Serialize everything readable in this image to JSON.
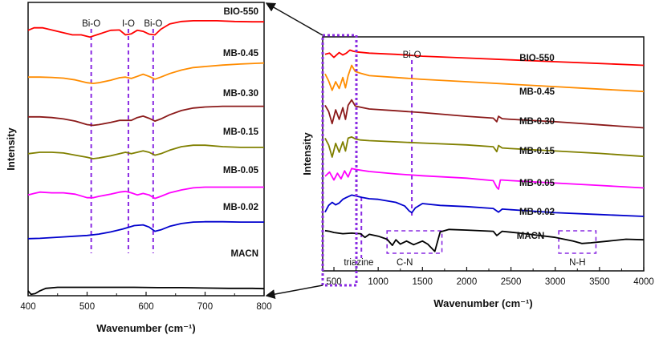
{
  "chart_data": [
    {
      "type": "line",
      "panel": "left (zoomed 400-800 cm-1)",
      "title": "",
      "xlabel": "Wavenumber (cm⁻¹)",
      "ylabel": "Intensity",
      "xlim": [
        400,
        800
      ],
      "xticks": [
        "400",
        "500",
        "600",
        "700",
        "800"
      ],
      "grid": false,
      "legend": "inline labels at right of each curve",
      "annotations": [
        {
          "text": "Bi-O",
          "x": 507
        },
        {
          "text": "I-O",
          "x": 570
        },
        {
          "text": "Bi-O",
          "x": 612
        }
      ],
      "series": [
        {
          "name": "BIO-550",
          "color": "#ff0000",
          "offset": 6,
          "x": [
            400,
            410,
            425,
            440,
            460,
            475,
            490,
            505,
            520,
            540,
            555,
            565,
            575,
            585,
            595,
            605,
            615,
            625,
            640,
            660,
            680,
            700,
            720,
            750,
            780,
            800
          ],
          "y": [
            0.55,
            0.62,
            0.62,
            0.56,
            0.48,
            0.42,
            0.42,
            0.36,
            0.44,
            0.55,
            0.56,
            0.42,
            0.45,
            0.55,
            0.52,
            0.44,
            0.42,
            0.58,
            0.73,
            0.8,
            0.82,
            0.82,
            0.82,
            0.8,
            0.79,
            0.79
          ]
        },
        {
          "name": "MB-0.45",
          "color": "#ff8c00",
          "offset": 5,
          "x": [
            400,
            420,
            440,
            460,
            480,
            500,
            510,
            520,
            540,
            555,
            565,
            575,
            585,
            595,
            605,
            615,
            625,
            640,
            660,
            680,
            700,
            730,
            760,
            800
          ],
          "y": [
            0.36,
            0.36,
            0.35,
            0.33,
            0.28,
            0.2,
            0.18,
            0.2,
            0.27,
            0.34,
            0.36,
            0.32,
            0.38,
            0.44,
            0.38,
            0.3,
            0.36,
            0.46,
            0.56,
            0.63,
            0.66,
            0.7,
            0.73,
            0.76
          ]
        },
        {
          "name": "MB-0.30",
          "color": "#8b1a1a",
          "offset": 4,
          "x": [
            400,
            420,
            440,
            460,
            480,
            500,
            510,
            520,
            540,
            555,
            565,
            575,
            585,
            595,
            605,
            615,
            625,
            640,
            660,
            680,
            700,
            730,
            760,
            800
          ],
          "y": [
            0.3,
            0.3,
            0.28,
            0.24,
            0.18,
            0.08,
            0.06,
            0.08,
            0.14,
            0.2,
            0.2,
            0.2,
            0.28,
            0.32,
            0.26,
            0.18,
            0.24,
            0.36,
            0.48,
            0.55,
            0.58,
            0.6,
            0.6,
            0.6
          ]
        },
        {
          "name": "MB-0.15",
          "color": "#808000",
          "offset": 3,
          "x": [
            400,
            420,
            440,
            460,
            480,
            500,
            510,
            520,
            540,
            555,
            565,
            575,
            585,
            595,
            605,
            615,
            625,
            640,
            660,
            680,
            700,
            730,
            760,
            800
          ],
          "y": [
            0.3,
            0.34,
            0.34,
            0.32,
            0.26,
            0.2,
            0.16,
            0.18,
            0.24,
            0.3,
            0.34,
            0.3,
            0.34,
            0.38,
            0.34,
            0.26,
            0.3,
            0.4,
            0.5,
            0.54,
            0.54,
            0.5,
            0.48,
            0.48
          ]
        },
        {
          "name": "MB-0.05",
          "color": "#ff00ff",
          "offset": 2,
          "x": [
            400,
            410,
            420,
            440,
            460,
            480,
            500,
            510,
            520,
            540,
            555,
            565,
            575,
            585,
            595,
            605,
            615,
            625,
            640,
            660,
            680,
            700,
            730,
            760,
            800
          ],
          "y": [
            0.2,
            0.24,
            0.28,
            0.26,
            0.26,
            0.22,
            0.12,
            0.12,
            0.16,
            0.22,
            0.28,
            0.3,
            0.26,
            0.2,
            0.24,
            0.2,
            0.1,
            0.16,
            0.26,
            0.34,
            0.4,
            0.42,
            0.42,
            0.42,
            0.42
          ]
        },
        {
          "name": "MB-0.02",
          "color": "#0000cd",
          "offset": 1,
          "x": [
            400,
            420,
            440,
            460,
            480,
            500,
            520,
            540,
            560,
            580,
            595,
            605,
            615,
            625,
            640,
            660,
            680,
            700,
            730,
            760,
            800
          ],
          "y": [
            0.05,
            0.06,
            0.08,
            0.1,
            0.12,
            0.14,
            0.18,
            0.24,
            0.32,
            0.42,
            0.44,
            0.38,
            0.26,
            0.3,
            0.4,
            0.48,
            0.52,
            0.53,
            0.53,
            0.52,
            0.52
          ]
        },
        {
          "name": "MACN",
          "color": "#000000",
          "offset": 0,
          "x": [
            400,
            405,
            412,
            420,
            430,
            450,
            470,
            500,
            540,
            580,
            620,
            660,
            700,
            740,
            780,
            800
          ],
          "y": [
            -0.52,
            -0.62,
            -0.6,
            -0.52,
            -0.45,
            -0.42,
            -0.42,
            -0.42,
            -0.42,
            -0.42,
            -0.43,
            -0.43,
            -0.44,
            -0.45,
            -0.45,
            -0.46
          ]
        }
      ]
    },
    {
      "type": "line",
      "panel": "right (full 400-4000 cm-1)",
      "title": "",
      "xlabel": "Wavenumber (cm⁻¹)",
      "ylabel": "Intensity",
      "xlim": [
        400,
        4000
      ],
      "xticks": [
        "500",
        "1000",
        "1500",
        "2000",
        "2500",
        "3000",
        "3500",
        "4000"
      ],
      "grid": false,
      "legend": "inline labels above right end of each curve",
      "annotations": [
        {
          "text": "Bi-O",
          "x": 1380
        },
        {
          "text": "triazine",
          "x": 810
        },
        {
          "text": "C-N",
          "x": 1240
        },
        {
          "text": "N-H",
          "x": 3240
        }
      ],
      "series": [
        {
          "name": "BIO-550",
          "color": "#ff0000",
          "offset": 6,
          "x": [
            400,
            450,
            500,
            530,
            560,
            600,
            640,
            680,
            720,
            760,
            900,
            1200,
            1500,
            2000,
            2500,
            3000,
            3500,
            4000
          ],
          "y": [
            0.32,
            0.36,
            0.22,
            0.3,
            0.38,
            0.3,
            0.36,
            0.46,
            0.42,
            0.4,
            0.36,
            0.32,
            0.26,
            0.2,
            0.14,
            0.08,
            0.02,
            -0.04
          ]
        },
        {
          "name": "MB-0.45",
          "color": "#ff8c00",
          "offset": 5,
          "x": [
            400,
            440,
            480,
            520,
            560,
            600,
            630,
            660,
            700,
            740,
            800,
            900,
            1200,
            1500,
            2000,
            2500,
            3000,
            3500,
            4000
          ],
          "y": [
            0.68,
            0.45,
            0.14,
            0.42,
            0.2,
            0.56,
            0.22,
            0.62,
            0.96,
            0.76,
            0.7,
            0.62,
            0.56,
            0.5,
            0.42,
            0.34,
            0.26,
            0.18,
            0.1
          ]
        },
        {
          "name": "MB-0.30",
          "color": "#8b1a1a",
          "offset": 4,
          "x": [
            400,
            440,
            480,
            520,
            560,
            600,
            630,
            660,
            700,
            740,
            800,
            900,
            1200,
            1500,
            2000,
            2300,
            2340,
            2360,
            2400,
            2500,
            3000,
            3500,
            4000
          ],
          "y": [
            0.7,
            0.5,
            0.1,
            0.55,
            0.24,
            0.62,
            0.24,
            0.7,
            0.88,
            0.68,
            0.64,
            0.58,
            0.52,
            0.46,
            0.34,
            0.28,
            0.16,
            0.34,
            0.26,
            0.24,
            0.16,
            0.06,
            -0.04
          ]
        },
        {
          "name": "MB-0.15",
          "color": "#808000",
          "offset": 3,
          "x": [
            400,
            440,
            480,
            520,
            560,
            600,
            630,
            660,
            700,
            740,
            800,
            900,
            1200,
            1500,
            2000,
            2300,
            2340,
            2360,
            2400,
            2500,
            3000,
            3500,
            4000
          ],
          "y": [
            0.62,
            0.4,
            0.0,
            0.45,
            0.16,
            0.5,
            0.2,
            0.62,
            0.66,
            0.6,
            0.56,
            0.54,
            0.5,
            0.46,
            0.4,
            0.34,
            0.18,
            0.38,
            0.3,
            0.28,
            0.2,
            0.12,
            0.02
          ]
        },
        {
          "name": "MB-0.05",
          "color": "#ff00ff",
          "offset": 2,
          "x": [
            400,
            450,
            500,
            540,
            580,
            620,
            660,
            700,
            760,
            900,
            1200,
            1500,
            2000,
            2300,
            2340,
            2360,
            2380,
            2400,
            2500,
            3000,
            3500,
            4000
          ],
          "y": [
            0.42,
            0.56,
            0.3,
            0.52,
            0.34,
            0.6,
            0.4,
            0.68,
            0.64,
            0.58,
            0.5,
            0.44,
            0.36,
            0.28,
            0.06,
            0.0,
            0.3,
            0.3,
            0.28,
            0.2,
            0.12,
            0.04
          ]
        },
        {
          "name": "MB-0.02",
          "color": "#0000cd",
          "offset": 1,
          "x": [
            400,
            440,
            480,
            520,
            560,
            600,
            640,
            700,
            760,
            820,
            900,
            1000,
            1200,
            1300,
            1350,
            1380,
            1420,
            1500,
            1700,
            2000,
            2300,
            2360,
            2400,
            2600,
            3000,
            3500,
            4000
          ],
          "y": [
            0.14,
            0.36,
            0.46,
            0.38,
            0.44,
            0.56,
            0.62,
            0.7,
            0.66,
            0.62,
            0.58,
            0.56,
            0.46,
            0.34,
            0.18,
            0.12,
            0.28,
            0.42,
            0.36,
            0.32,
            0.26,
            0.14,
            0.24,
            0.2,
            0.12,
            0.06,
            0.0
          ]
        },
        {
          "name": "MACN",
          "color": "#000000",
          "offset": 0,
          "x": [
            400,
            450,
            500,
            600,
            700,
            800,
            850,
            900,
            1000,
            1100,
            1160,
            1200,
            1250,
            1320,
            1400,
            1500,
            1560,
            1640,
            1700,
            1800,
            2000,
            2300,
            2340,
            2400,
            2600,
            3000,
            3200,
            3300,
            3400,
            3600,
            3800,
            4000
          ],
          "y": [
            0.32,
            0.3,
            0.26,
            0.22,
            0.24,
            0.22,
            0.1,
            0.2,
            0.14,
            0.04,
            -0.16,
            0.02,
            -0.12,
            -0.02,
            -0.14,
            -0.02,
            -0.12,
            -0.36,
            0.28,
            0.36,
            0.34,
            0.3,
            0.16,
            0.3,
            0.24,
            0.1,
            -0.02,
            -0.1,
            -0.08,
            -0.02,
            0.04,
            0.02
          ]
        }
      ]
    }
  ]
}
